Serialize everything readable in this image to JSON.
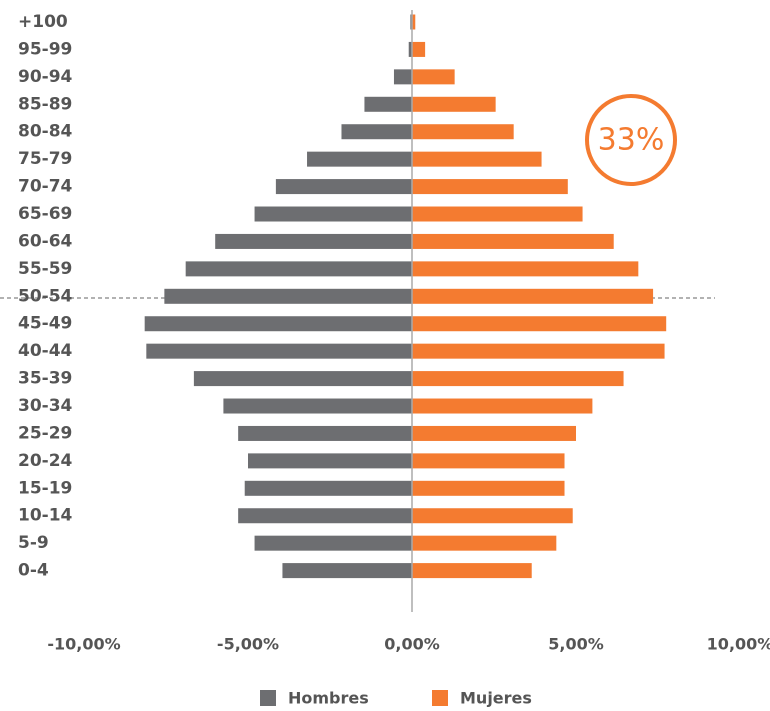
{
  "chart_data": {
    "type": "pyramid",
    "categories": [
      "+100",
      "95-99",
      "90-94",
      "85-89",
      "80-84",
      "75-79",
      "70-74",
      "65-69",
      "60-64",
      "55-59",
      "50-54",
      "45-49",
      "40-44",
      "35-39",
      "30-34",
      "25-29",
      "20-24",
      "15-19",
      "10-14",
      "5-9",
      "0-4"
    ],
    "series": [
      {
        "name": "Hombres",
        "color": "#6d6e71",
        "values": [
          -0.05,
          -0.1,
          -0.55,
          -1.45,
          -2.15,
          -3.2,
          -4.15,
          -4.8,
          -6.0,
          -6.9,
          -7.55,
          -8.15,
          -8.1,
          -6.65,
          -5.75,
          -5.3,
          -5.0,
          -5.1,
          -5.3,
          -4.8,
          -3.95
        ]
      },
      {
        "name": "Mujeres",
        "color": "#f47b30",
        "values": [
          0.1,
          0.4,
          1.3,
          2.55,
          3.1,
          3.95,
          4.75,
          5.2,
          6.15,
          6.9,
          7.35,
          7.75,
          7.7,
          6.45,
          5.5,
          5.0,
          4.65,
          4.65,
          4.9,
          4.4,
          3.65
        ]
      }
    ],
    "xlim": [
      -10,
      10
    ],
    "xticks": [
      {
        "value": -10,
        "label": "-10,00%"
      },
      {
        "value": -5,
        "label": "-5,00%"
      },
      {
        "value": 0,
        "label": "0,00%"
      },
      {
        "value": 5,
        "label": "5,00%"
      },
      {
        "value": 10,
        "label": "10,00%"
      }
    ],
    "annotation": "33%",
    "legend": "bottom"
  }
}
